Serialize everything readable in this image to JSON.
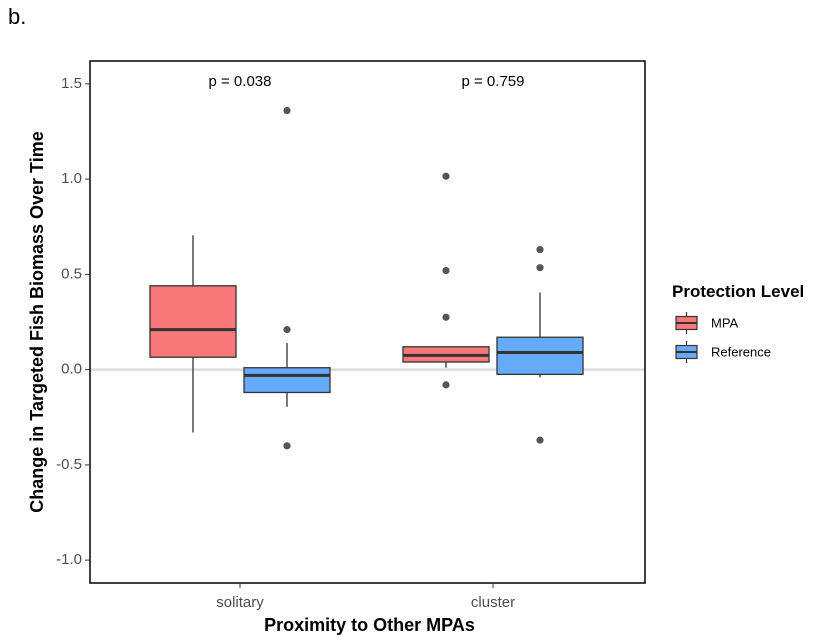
{
  "panel_label": "b.",
  "chart_data": {
    "type": "box",
    "title": "",
    "xlabel": "Proximity to Other MPAs",
    "ylabel": "Change in Targeted Fish Biomass Over Time",
    "ylim": [
      -1.12,
      1.62
    ],
    "yticks": [
      -1.0,
      -0.5,
      0.0,
      0.5,
      1.0,
      1.5
    ],
    "ytick_labels": [
      "-1.0",
      "-0.5",
      "0.0",
      "0.5",
      "1.0",
      "1.5"
    ],
    "reference_line": 0.0,
    "categories": [
      "solitary",
      "cluster"
    ],
    "annotations": [
      "p = 0.038",
      "p = 0.759"
    ],
    "legend": {
      "title": "Protection Level",
      "position": "right",
      "entries": [
        "MPA",
        "Reference"
      ]
    },
    "series": [
      {
        "name": "MPA",
        "color": "#f8787a",
        "boxes": [
          {
            "category": "solitary",
            "whisker_low": -0.33,
            "q1": 0.065,
            "median": 0.21,
            "q3": 0.44,
            "whisker_high": 0.705,
            "outliers": []
          },
          {
            "category": "cluster",
            "whisker_low": 0.01,
            "q1": 0.04,
            "median": 0.075,
            "q3": 0.12,
            "whisker_high": 0.12,
            "outliers": [
              1.015,
              0.52,
              0.275,
              -0.08
            ]
          }
        ]
      },
      {
        "name": "Reference",
        "color": "#66aafa",
        "boxes": [
          {
            "category": "solitary",
            "whisker_low": -0.195,
            "q1": -0.12,
            "median": -0.03,
            "q3": 0.01,
            "whisker_high": 0.14,
            "outliers": [
              1.36,
              0.21,
              -0.4
            ]
          },
          {
            "category": "cluster",
            "whisker_low": -0.04,
            "q1": -0.025,
            "median": 0.09,
            "q3": 0.17,
            "whisker_high": 0.405,
            "outliers": [
              0.63,
              0.535,
              -0.37
            ]
          }
        ]
      }
    ]
  }
}
